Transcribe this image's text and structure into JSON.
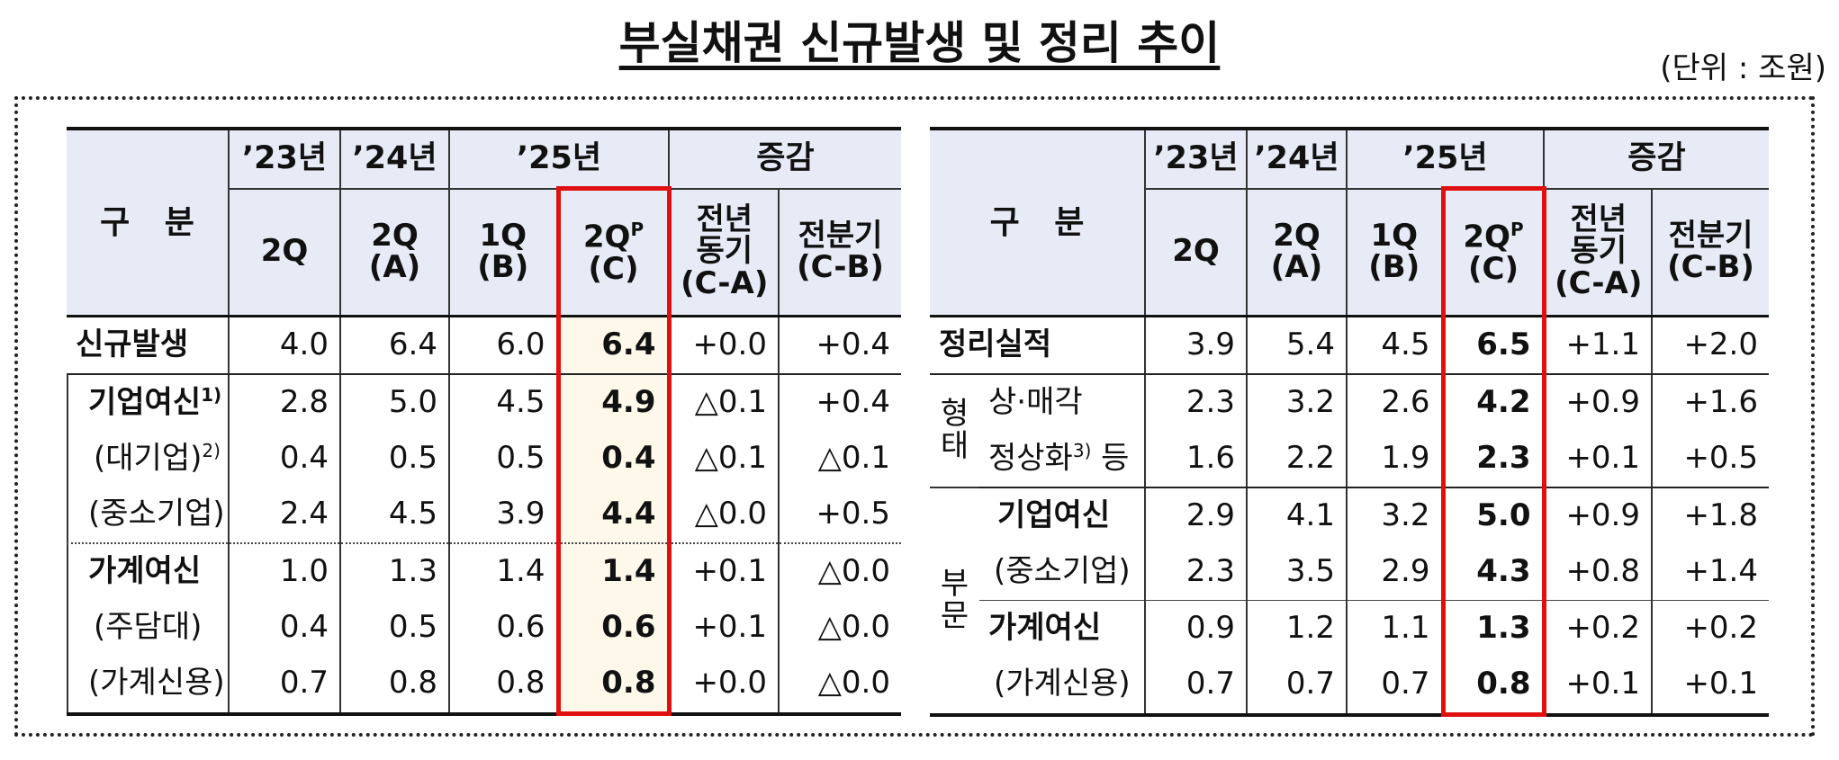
{
  "title": "부실채권 신규발생 및 정리 추이",
  "unit": "(단위 : 조원)",
  "tables": [
    {
      "header": {
        "corner": "구 분",
        "years": [
          "’23년",
          "’24년",
          "’25년",
          "증감"
        ],
        "columns": [
          "2Q",
          "2Q\n(A)",
          "1Q\n(B)",
          {
            "main": "2Q",
            "sup": "P",
            "sub": "(C)"
          },
          "전년\n동기\n(C-A)",
          "전분기\n(C-B)"
        ]
      },
      "rows": [
        {
          "label": "신규발생",
          "values": [
            "4.0",
            "6.4",
            "6.0",
            "6.4",
            "+0.0",
            "+0.4"
          ]
        },
        {
          "label": "기업여신",
          "note": "1)",
          "values": [
            "2.8",
            "5.0",
            "4.5",
            "4.9",
            "△0.1",
            "+0.4"
          ]
        },
        {
          "label": "(대기업)",
          "note": "2)",
          "values": [
            "0.4",
            "0.5",
            "0.5",
            "0.4",
            "△0.1",
            "△0.1"
          ]
        },
        {
          "label": "(중소기업)",
          "values": [
            "2.4",
            "4.5",
            "3.9",
            "4.4",
            "△0.0",
            "+0.5"
          ]
        },
        {
          "label": "가계여신",
          "values": [
            "1.0",
            "1.3",
            "1.4",
            "1.4",
            "+0.1",
            "△0.0"
          ]
        },
        {
          "label": "(주담대)",
          "values": [
            "0.4",
            "0.5",
            "0.6",
            "0.6",
            "+0.1",
            "△0.0"
          ]
        },
        {
          "label": "(가계신용)",
          "values": [
            "0.7",
            "0.8",
            "0.8",
            "0.8",
            "+0.0",
            "△0.0"
          ]
        }
      ]
    },
    {
      "header": {
        "corner": "구 분",
        "years": [
          "’23년",
          "’24년",
          "’25년",
          "증감"
        ],
        "columns": [
          "2Q",
          "2Q\n(A)",
          "1Q\n(B)",
          {
            "main": "2Q",
            "sup": "P",
            "sub": "(C)"
          },
          "전년\n동기\n(C-A)",
          "전분기\n(C-B)"
        ]
      },
      "rows": [
        {
          "label": "정리실적",
          "values": [
            "3.9",
            "5.4",
            "4.5",
            "6.5",
            "+1.1",
            "+2.0"
          ]
        },
        {
          "group": "형태",
          "label": "상·매각",
          "values": [
            "2.3",
            "3.2",
            "2.6",
            "4.2",
            "+0.9",
            "+1.6"
          ]
        },
        {
          "label": "정상화",
          "note": "3)",
          "suffix": " 등",
          "values": [
            "1.6",
            "2.2",
            "1.9",
            "2.3",
            "+0.1",
            "+0.5"
          ]
        },
        {
          "group": "부문",
          "label": "기업여신",
          "values": [
            "2.9",
            "4.1",
            "3.2",
            "5.0",
            "+0.9",
            "+1.8"
          ]
        },
        {
          "label": "(중소기업)",
          "values": [
            "2.3",
            "3.5",
            "2.9",
            "4.3",
            "+0.8",
            "+1.4"
          ]
        },
        {
          "label": "가계여신",
          "values": [
            "0.9",
            "1.2",
            "1.1",
            "1.3",
            "+0.2",
            "+0.2"
          ]
        },
        {
          "label": "(가계신용)",
          "values": [
            "0.7",
            "0.7",
            "0.7",
            "0.8",
            "+0.1",
            "+0.1"
          ]
        }
      ]
    }
  ]
}
